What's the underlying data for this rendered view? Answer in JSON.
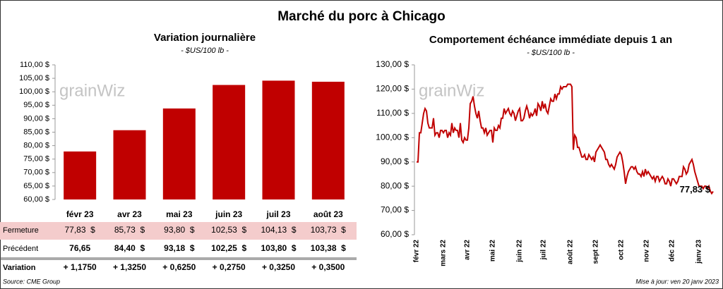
{
  "title": "Marché du porc à Chicago",
  "watermark": "grainWiz",
  "source": "Source: CME Group",
  "update": "Mise à jour: ven 20 janv 2023",
  "chart_data": [
    {
      "type": "bar",
      "title": "Variation journalière",
      "subtitle": "- $US/100 lb -",
      "categories": [
        "févr 23",
        "avr 23",
        "mai 23",
        "juin 23",
        "juil 23",
        "août 23"
      ],
      "values": [
        77.83,
        85.73,
        93.8,
        102.53,
        104.13,
        103.73
      ],
      "color": "#c00000",
      "ylim": [
        60,
        110
      ],
      "yticks": [
        {
          "value": 60,
          "label": "60,00 $"
        },
        {
          "value": 65,
          "label": "65,00 $"
        },
        {
          "value": 70,
          "label": "70,00 $"
        },
        {
          "value": 75,
          "label": "75,00 $"
        },
        {
          "value": 80,
          "label": "80,00 $"
        },
        {
          "value": 85,
          "label": "85,00 $"
        },
        {
          "value": 90,
          "label": "90,00 $"
        },
        {
          "value": 95,
          "label": "95,00 $"
        },
        {
          "value": 100,
          "label": "100,00 $"
        },
        {
          "value": 105,
          "label": "105,00 $"
        },
        {
          "value": 110,
          "label": "110,00 $"
        }
      ],
      "grid": false
    },
    {
      "type": "line",
      "title": "Comportement échéance immédiate depuis 1 an",
      "subtitle": "- $US/100 lb -",
      "categories": [
        "févr 22",
        null,
        null,
        null,
        null,
        null,
        null,
        null,
        null,
        null,
        null,
        null,
        null,
        null,
        null,
        null,
        null,
        null,
        null,
        "mars 22",
        null,
        null,
        null,
        null,
        null,
        null,
        null,
        null,
        null,
        null,
        null,
        null,
        null,
        null,
        null,
        null,
        "avr 22",
        null,
        null,
        null,
        null,
        null,
        null,
        null,
        null,
        null,
        null,
        null,
        null,
        null,
        null,
        null,
        null,
        null,
        "mai 22",
        null,
        null,
        null,
        null,
        null,
        null,
        null,
        null,
        null,
        null,
        null,
        null,
        null,
        null,
        null,
        null,
        null,
        null,
        "juin 22",
        null,
        null,
        null,
        null,
        null,
        null,
        null,
        null,
        null,
        null,
        null,
        null,
        null,
        null,
        null,
        null,
        "juil 22",
        null,
        null,
        null,
        null,
        null,
        null,
        null,
        null,
        null,
        null,
        null,
        null,
        null,
        null,
        null,
        null,
        null,
        null,
        "août 22",
        null,
        null,
        null,
        null,
        null,
        null,
        null,
        null,
        null,
        null,
        null,
        null,
        null,
        null,
        null,
        null,
        null,
        "sept 22",
        null,
        null,
        null,
        null,
        null,
        null,
        null,
        null,
        null,
        null,
        null,
        null,
        null,
        null,
        null,
        null,
        null,
        "oct 22",
        null,
        null,
        null,
        null,
        null,
        null,
        null,
        null,
        null,
        null,
        null,
        null,
        null,
        null,
        null,
        null,
        null,
        "nov 22",
        null,
        null,
        null,
        null,
        null,
        null,
        null,
        null,
        null,
        null,
        null,
        null,
        null,
        null,
        null,
        null,
        null,
        "déc 22",
        null,
        null,
        null,
        null,
        null,
        null,
        null,
        null,
        null,
        null,
        null,
        null,
        null,
        null,
        null,
        null,
        null,
        null,
        "janv 23",
        null,
        null,
        null,
        null,
        null,
        null,
        null,
        null,
        null,
        null
      ],
      "values": [
        90,
        90,
        102,
        102,
        106,
        110,
        112,
        111,
        106,
        104,
        104,
        104,
        108,
        101,
        102,
        102,
        100,
        103,
        103,
        102,
        103,
        103,
        100,
        102,
        101,
        106,
        102,
        104,
        103,
        103,
        100,
        106,
        99,
        98,
        100,
        99,
        99,
        104,
        114,
        115,
        117,
        113,
        110,
        108,
        111,
        107,
        104,
        104,
        102,
        104,
        101,
        102,
        103,
        103,
        98,
        104,
        103,
        103,
        105,
        104,
        108,
        108,
        112,
        110,
        111,
        112,
        110,
        109,
        111,
        110,
        107,
        109,
        111,
        112,
        107,
        107,
        108,
        111,
        113,
        111,
        108,
        110,
        109,
        110,
        112,
        109,
        114,
        113,
        111,
        115,
        112,
        114,
        111,
        110,
        113,
        116,
        115,
        115,
        118,
        116,
        118,
        118,
        121,
        120,
        121,
        121,
        121,
        122,
        122,
        122,
        121,
        95,
        101,
        100,
        96,
        96,
        94,
        92,
        92,
        93,
        91,
        91,
        93,
        92,
        91,
        92,
        90,
        94,
        95,
        96,
        97,
        96,
        95,
        94,
        91,
        91,
        89,
        88,
        89,
        88,
        87,
        89,
        92,
        93,
        94,
        93,
        90,
        86,
        81,
        84,
        86,
        87,
        88,
        88,
        87,
        88,
        86,
        85,
        85,
        84,
        86,
        84,
        87,
        85,
        86,
        85,
        84,
        83,
        84,
        82,
        84,
        84,
        82,
        83,
        84,
        83,
        81,
        81,
        83,
        82,
        80,
        83,
        83,
        82,
        81,
        82,
        84,
        84,
        84,
        88,
        87,
        85,
        86,
        89,
        90,
        91,
        89,
        86,
        84,
        82,
        80,
        80,
        80,
        79,
        80,
        80,
        79,
        80,
        78,
        77,
        77.83
      ],
      "color": "#c00000",
      "annotation": "77,83 $",
      "ylim": [
        60,
        130
      ],
      "yticks": [
        {
          "value": 60,
          "label": "60,00 $"
        },
        {
          "value": 70,
          "label": "70,00 $"
        },
        {
          "value": 80,
          "label": "80,00 $"
        },
        {
          "value": 90,
          "label": "90,00 $"
        },
        {
          "value": 100,
          "label": "100,00 $"
        },
        {
          "value": 110,
          "label": "110,00 $"
        },
        {
          "value": 120,
          "label": "120,00 $"
        },
        {
          "value": 130,
          "label": "130,00 $"
        }
      ],
      "grid": false
    }
  ],
  "table": {
    "rows": [
      {
        "label": "Fermeture",
        "cells": [
          "77,83  $",
          "85,73  $",
          "93,80  $",
          "102,53  $",
          "104,13  $",
          "103,73  $"
        ]
      },
      {
        "label": "Précédent",
        "cells": [
          "76,65",
          "84,40  $",
          "93,18  $",
          "102,25  $",
          "103,80  $",
          "103,38  $"
        ]
      },
      {
        "label": "Variation",
        "cells": [
          "+ 1,1750",
          "+ 1,3250",
          "+ 0,6250",
          "+ 0,2750",
          "+ 0,3250",
          "+ 0,3500"
        ]
      }
    ]
  }
}
